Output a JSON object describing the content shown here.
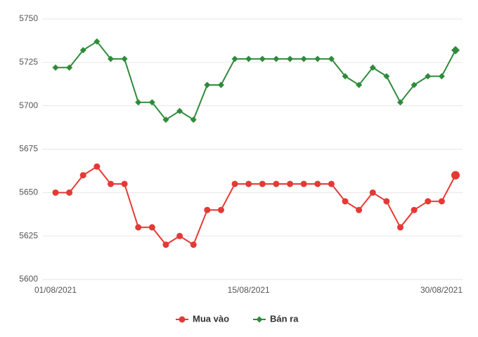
{
  "chart_data": {
    "type": "line",
    "categories": [
      "01/08/2021",
      null,
      null,
      null,
      null,
      null,
      null,
      null,
      null,
      null,
      null,
      null,
      null,
      null,
      "15/08/2021",
      null,
      null,
      null,
      null,
      null,
      null,
      null,
      null,
      null,
      null,
      null,
      null,
      null,
      null,
      "30/08/2021"
    ],
    "series": [
      {
        "name": "Mua vào",
        "color": "#e53935",
        "marker": "circle",
        "values": [
          5650,
          5650,
          5660,
          5665,
          5655,
          5655,
          5630,
          5630,
          5620,
          5625,
          5620,
          5640,
          5640,
          5655,
          5655,
          5655,
          5655,
          5655,
          5655,
          5655,
          5655,
          5645,
          5640,
          5650,
          5645,
          5630,
          5640,
          5645,
          5645,
          5660
        ]
      },
      {
        "name": "Bán ra",
        "color": "#2e8b3a",
        "marker": "diamond",
        "values": [
          5722,
          5722,
          5732,
          5737,
          5727,
          5727,
          5702,
          5702,
          5692,
          5697,
          5692,
          5712,
          5712,
          5727,
          5727,
          5727,
          5727,
          5727,
          5727,
          5727,
          5727,
          5717,
          5712,
          5722,
          5717,
          5702,
          5712,
          5717,
          5717,
          5732
        ]
      }
    ],
    "ylim": [
      5600,
      5750
    ],
    "yticks": [
      5600,
      5625,
      5650,
      5675,
      5700,
      5725,
      5750
    ],
    "grid": true,
    "legend": "bottom"
  }
}
